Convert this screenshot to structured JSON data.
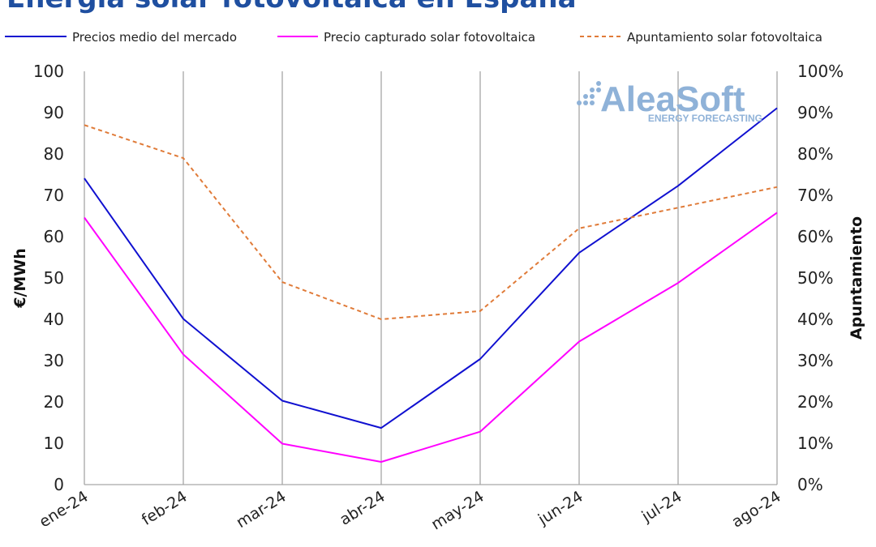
{
  "header": {
    "title": "Energía solar fotovoltaica en España"
  },
  "logo": {
    "name": "AleaSoft",
    "tagline": "ENERGY FORECASTING"
  },
  "colors": {
    "market": "#1010d0",
    "captured": "#ff00ff",
    "apuntamiento": "#e07b39",
    "grid": "#a6a6a6",
    "title": "#1f4fa0"
  },
  "chart_data": {
    "type": "line",
    "categories": [
      "ene-24",
      "feb-24",
      "mar-24",
      "abr-24",
      "may-24",
      "jun-24",
      "jul-24",
      "ago-24"
    ],
    "ylabel": "€/MWh",
    "ylim": [
      0,
      100
    ],
    "yticks": [
      "0",
      "10",
      "20",
      "30",
      "40",
      "50",
      "60",
      "70",
      "80",
      "90",
      "100"
    ],
    "y2label": "Apuntamiento",
    "y2lim": [
      0,
      1
    ],
    "y2ticks": [
      "0%",
      "10%",
      "20%",
      "30%",
      "40%",
      "50%",
      "60%",
      "70%",
      "80%",
      "90%",
      "100%"
    ],
    "grid": "vertical",
    "legend_position": "top",
    "series": [
      {
        "name": "Precios medio del mercado",
        "axis": "left",
        "style": "solid",
        "values": [
          74.1,
          40.1,
          20.3,
          13.7,
          30.4,
          56.1,
          72.3,
          91.1
        ]
      },
      {
        "name": "Precio capturado solar fotovoltaica",
        "axis": "left",
        "style": "solid",
        "values": [
          64.6,
          31.5,
          9.9,
          5.5,
          12.8,
          34.6,
          48.8,
          65.8
        ]
      },
      {
        "name": "Apuntamiento solar fotovoltaica",
        "axis": "right",
        "style": "dashed",
        "values": [
          0.87,
          0.79,
          0.49,
          0.4,
          0.42,
          0.62,
          0.67,
          0.72
        ]
      }
    ]
  }
}
